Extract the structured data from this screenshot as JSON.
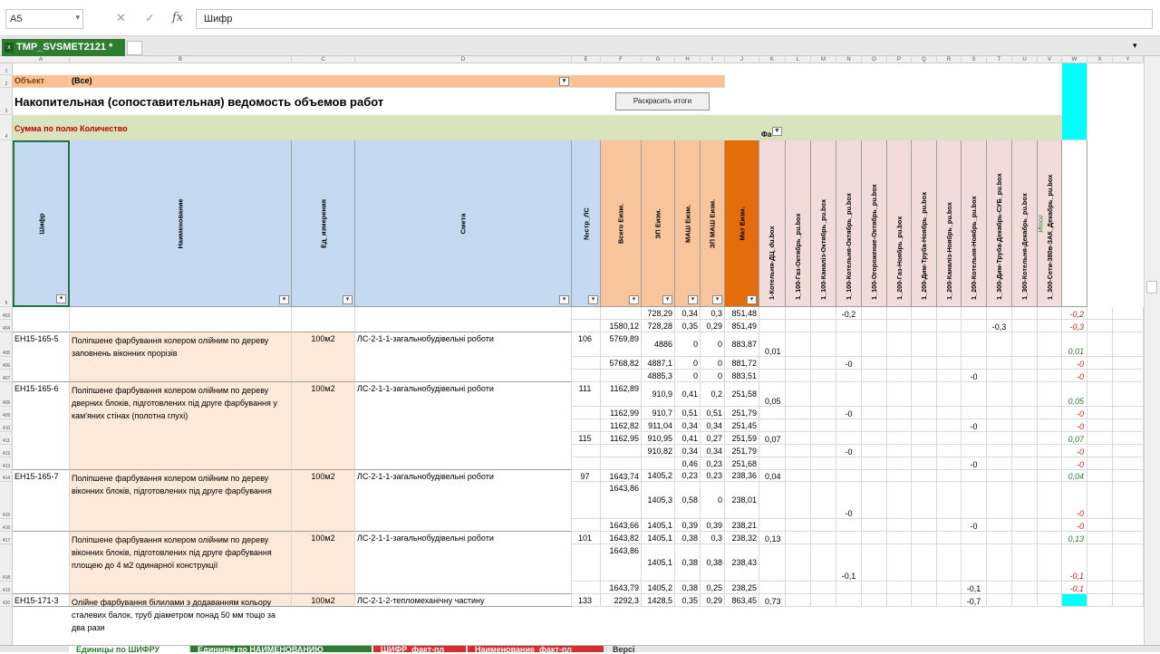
{
  "formula_bar": {
    "name_box": "A5",
    "cancel_icon": "✕",
    "enter_icon": "✓",
    "fx_icon": "fx",
    "formula": "Шифр"
  },
  "workbook_tab": {
    "label": "TMP_SVSMET2121 *"
  },
  "col_letters": [
    "A",
    "B",
    "C",
    "D",
    "E",
    "F",
    "G",
    "H",
    "I",
    "J",
    "K",
    "L",
    "M",
    "N",
    "O",
    "P",
    "Q",
    "R",
    "S",
    "T",
    "U",
    "V",
    "W",
    "X",
    "Y"
  ],
  "filter_row": {
    "label": "Объект",
    "value": "(Все)"
  },
  "title": "Накопительная (сопоставительная) ведомость объемов работ",
  "color_button": "Раскрасить итоги",
  "sum_label": "Сумма по полю Количество",
  "fa_label": "Фа",
  "headers": {
    "shifr": "Шифр",
    "naim": "Наименование",
    "ed": "Ед_измерения",
    "smeta": "Смета",
    "nls": "№стр_ЛС",
    "vsego": "Всего Еизм.",
    "zp": "ЗП Еизм.",
    "mash": "МАШ Еизм.",
    "zpmash": "ЗП МАШ Еизм.",
    "mat": "Мат Еизм.",
    "objects": [
      "1-Котельня-ДЦ_du.box",
      "1_100-Газ-Октябрь_pu.box",
      "1_100-Каналіз-Октябрь_pu.box",
      "1_100-Котельня-Октябрь_pu.box",
      "1_100-Огорожение-Октябрь_pu.box",
      "1_200-Газ-Ноябрь_pu.box",
      "1_200-Дим-Труба-Ноябрь_pu.box",
      "1_200-Каналіз-Ноябрь_pu.box",
      "1_200-Котельня-Ноябрь_pu.box",
      "1_300-Дим-Труба-Декабрь-СУБ_pu.box",
      "1_300-Котельня-Декабрь_pu.box",
      "1_300-Сети-380в-ЗАК_Декабрь_pu.box"
    ],
    "itog": "Итог"
  },
  "row_numbers": [
    "1",
    "2",
    "3",
    "4",
    "5",
    "403",
    "404",
    "405",
    "406",
    "407",
    "408",
    "409",
    "410",
    "411",
    "412",
    "413",
    "414",
    "415",
    "416",
    "417",
    "418",
    "419",
    "420"
  ],
  "groups": [
    {
      "shifr": "",
      "naim": "",
      "ed": "",
      "smeta": "",
      "rows": [
        {
          "nls": "",
          "vsego": "",
          "zp": "728,29",
          "mash": "0,34",
          "zpmash": "0,3",
          "mat": "851,48",
          "vals": {
            "3": "-0,2"
          },
          "itog": "-0,2"
        },
        {
          "nls": "",
          "vsego": "1580,12",
          "zp": "728,28",
          "mash": "0,35",
          "zpmash": "0,29",
          "mat": "851,49",
          "vals": {
            "9": "-0,3"
          },
          "itog": "-0,3"
        }
      ]
    },
    {
      "shifr": "ЕН15-165-5",
      "naim": "Поліпшене фарбування колером олійним по дереву заповнень віконних прорізів",
      "ed": "100м2",
      "smeta": "ЛС-2-1-1-загальнобудівельні  роботи",
      "rows": [
        {
          "nls": "106",
          "vsego": "5769,89",
          "zp": "4886",
          "mash": "0",
          "zpmash": "0",
          "mat": "883,87",
          "vals": {
            "0": "0,01"
          },
          "itog": "0,01"
        },
        {
          "nls": "",
          "vsego": "5768,82",
          "zp": "4887,1",
          "mash": "0",
          "zpmash": "0",
          "mat": "881,72",
          "vals": {
            "3": "-0"
          },
          "itog": "-0"
        },
        {
          "nls": "",
          "vsego": "",
          "zp": "4885,3",
          "mash": "0",
          "zpmash": "0",
          "mat": "883,51",
          "vals": {
            "8": "-0"
          },
          "itog": "-0"
        }
      ]
    },
    {
      "shifr": "ЕН15-165-6",
      "naim": "Поліпшене фарбування колером олійним по дереву дверних блоків, підготовлених під друге фарбування у кам'яних стінах (полотна глухі)",
      "ed": "100м2",
      "smeta": "ЛС-2-1-1-загальнобудівельні  роботи",
      "rows": [
        {
          "nls": "111",
          "vsego": "1162,89",
          "zp": "910,9",
          "mash": "0,41",
          "zpmash": "0,2",
          "mat": "251,58",
          "vals": {
            "0": "0,05"
          },
          "itog": "0,05"
        },
        {
          "nls": "",
          "vsego": "1162,99",
          "zp": "910,7",
          "mash": "0,51",
          "zpmash": "0,51",
          "mat": "251,79",
          "vals": {
            "3": "-0"
          },
          "itog": "-0"
        },
        {
          "nls": "",
          "vsego": "1162,82",
          "zp": "911,04",
          "mash": "0,34",
          "zpmash": "0,34",
          "mat": "251,45",
          "vals": {
            "8": "-0"
          },
          "itog": "-0"
        },
        {
          "nls": "115",
          "vsego": "1162,95",
          "zp": "910,95",
          "mash": "0,41",
          "zpmash": "0,27",
          "mat": "251,59",
          "vals": {
            "0": "0,07"
          },
          "itog": "0,07"
        },
        {
          "nls": "",
          "vsego": "",
          "zp": "910,82",
          "mash": "0,34",
          "zpmash": "0,34",
          "mat": "251,79",
          "vals": {
            "3": "-0"
          },
          "itog": "-0"
        },
        {
          "nls": "",
          "vsego": "",
          "zp": "",
          "mash": "0,46",
          "zpmash": "0,23",
          "mat": "251,68",
          "vals": {
            "8": "-0"
          },
          "itog": "-0"
        }
      ]
    },
    {
      "shifr": "ЕН15-165-7",
      "naim": "Поліпшене фарбування колером олійним по дереву віконних блоків, підготовлених під друге фарбування",
      "ed": "100м2",
      "smeta": "ЛС-2-1-1-загальнобудівельні  роботи",
      "rows": [
        {
          "nls": "97",
          "vsego": "1643,74",
          "zp": "1405,2",
          "mash": "0,23",
          "zpmash": "0,23",
          "mat": "238,36",
          "vals": {
            "0": "0,04"
          },
          "itog": "0,04"
        },
        {
          "nls": "",
          "vsego": "1643,86",
          "zp": "1405,3",
          "mash": "0,58",
          "zpmash": "0",
          "mat": "238,01",
          "vals": {
            "3": "-0"
          },
          "itog": "-0"
        },
        {
          "nls": "",
          "vsego": "1643,66",
          "zp": "1405,1",
          "mash": "0,39",
          "zpmash": "0,39",
          "mat": "238,21",
          "vals": {
            "8": "-0"
          },
          "itog": "-0"
        }
      ]
    },
    {
      "shifr": "",
      "naim": "Поліпшене фарбування колером олійним по дереву віконних блоків, підготовлених під друге фарбування площею до 4 м2 одинарної конструкції",
      "ed": "100м2",
      "smeta": "ЛС-2-1-1-загальнобудівельні  роботи",
      "rows": [
        {
          "nls": "101",
          "vsego": "1643,82",
          "zp": "1405,1",
          "mash": "0,38",
          "zpmash": "0,3",
          "mat": "238,32",
          "vals": {
            "0": "0,13"
          },
          "itog": "0,13"
        },
        {
          "nls": "",
          "vsego": "1643,86",
          "zp": "1405,1",
          "mash": "0,38",
          "zpmash": "0,38",
          "mat": "238,43",
          "vals": {
            "3": "-0,1"
          },
          "itog": "-0,1"
        },
        {
          "nls": "",
          "vsego": "1643,79",
          "zp": "1405,2",
          "mash": "0,38",
          "zpmash": "0,25",
          "mat": "238,25",
          "vals": {
            "8": "-0,1"
          },
          "itog": "-0,1"
        }
      ]
    },
    {
      "shifr": "ЕН15-171-3",
      "naim": "Олійне фарбування білилами з додаванням кольору сталевих балок, труб діаметром понад 50 мм тощо за два рази",
      "ed": "100м2",
      "smeta": "ЛС-2-1-2-тепломеханічну частину",
      "rows": [
        {
          "nls": "133",
          "vsego": "2292,3",
          "zp": "1428,5",
          "mash": "0,35",
          "zpmash": "0,29",
          "mat": "863,45",
          "vals": {
            "0": "0,73",
            "8": "-0,7"
          },
          "itog": ""
        }
      ]
    }
  ],
  "sheet_tabs": [
    {
      "label": "Единицы по ШИФРУ",
      "active": true
    },
    {
      "label": "Единицы по НАИМЕНОВАНИЮ",
      "active": false
    },
    {
      "label": "ШИФР_факт-пл",
      "active": false
    },
    {
      "label": "Наименование_факт-пл",
      "active": false
    },
    {
      "label": "Версі",
      "active": false
    }
  ],
  "colors": {
    "header_blue": "#c5d9f1",
    "header_orange": "#f8c49c",
    "header_darkorange": "#e46c0a",
    "header_pink": "#f2dcdb",
    "band_green": "#d8e4bc",
    "filter_orange": "#fac090",
    "itog_cyan": "#00ffff",
    "naim_bg": "#fde9d9",
    "positive": "#2e7d32",
    "negative": "#c62828"
  }
}
